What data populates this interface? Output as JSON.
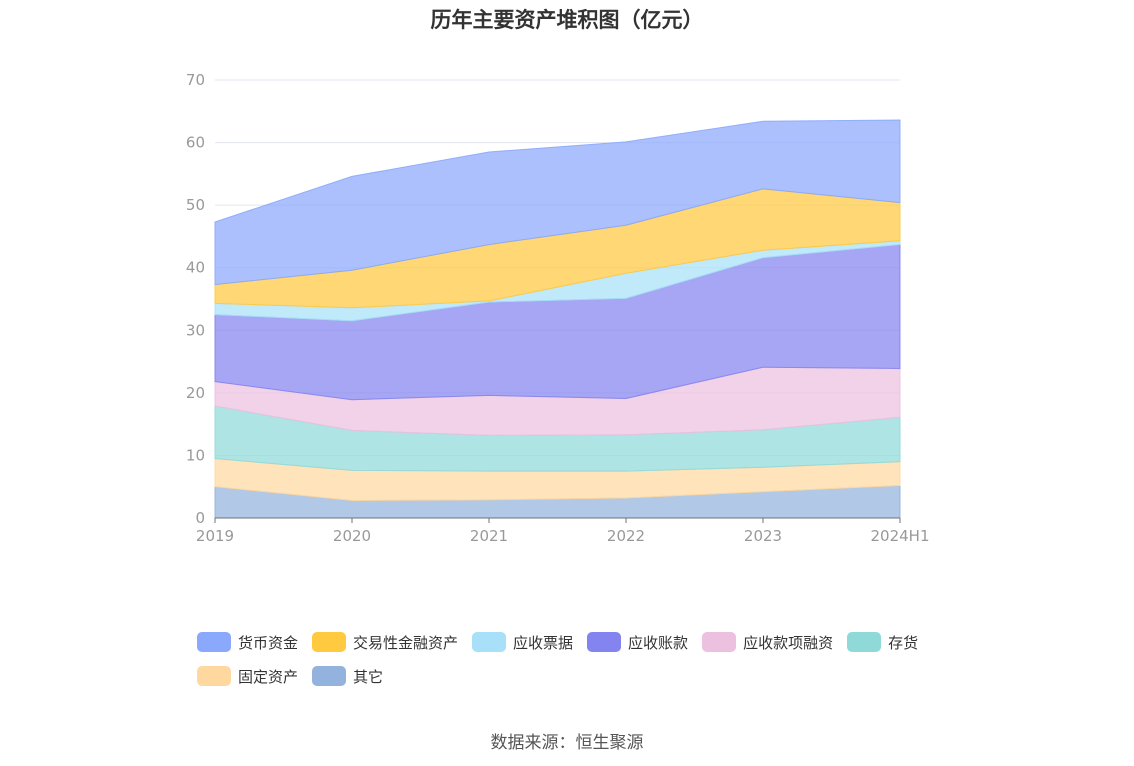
{
  "chart_data": {
    "type": "area",
    "title": "历年主要资产堆积图（亿元）",
    "categories": [
      "2019",
      "2020",
      "2021",
      "2022",
      "2023",
      "2024H1"
    ],
    "yticks": [
      "0",
      "10",
      "20",
      "30",
      "40",
      "50",
      "60",
      "70"
    ],
    "ylim": [
      0,
      70
    ],
    "stacked": true,
    "grid": true,
    "legend_position": "bottom",
    "series": [
      {
        "name": "其它",
        "color": "#93b3de",
        "values": [
          5.0,
          2.8,
          2.9,
          3.2,
          4.2,
          5.2
        ]
      },
      {
        "name": "固定资产",
        "color": "#ffd8a0",
        "values": [
          4.5,
          4.8,
          4.6,
          4.3,
          3.9,
          3.8
        ]
      },
      {
        "name": "存货",
        "color": "#8fd9d9",
        "values": [
          8.4,
          6.4,
          5.7,
          5.8,
          6.0,
          7.1
        ]
      },
      {
        "name": "应收款项融资",
        "color": "#ecc0df",
        "values": [
          3.9,
          4.9,
          6.4,
          5.8,
          10.0,
          7.8
        ]
      },
      {
        "name": "应收账款",
        "color": "#8384f0",
        "values": [
          10.7,
          12.6,
          14.9,
          16.0,
          17.5,
          19.8
        ]
      },
      {
        "name": "应收票据",
        "color": "#a7e0f8",
        "values": [
          1.8,
          2.1,
          0.2,
          4.0,
          1.2,
          0.6
        ]
      },
      {
        "name": "交易性金融资产",
        "color": "#ffc940",
        "values": [
          3.0,
          6.0,
          9.0,
          7.7,
          9.8,
          6.1
        ]
      },
      {
        "name": "货币资金",
        "color": "#8aa8fc",
        "values": [
          10.0,
          15.0,
          14.8,
          13.3,
          10.8,
          13.2
        ]
      }
    ]
  },
  "legend_order": [
    "货币资金",
    "交易性金融资产",
    "应收票据",
    "应收账款",
    "应收款项融资",
    "存货",
    "固定资产",
    "其它"
  ],
  "source": "数据来源：恒生聚源"
}
